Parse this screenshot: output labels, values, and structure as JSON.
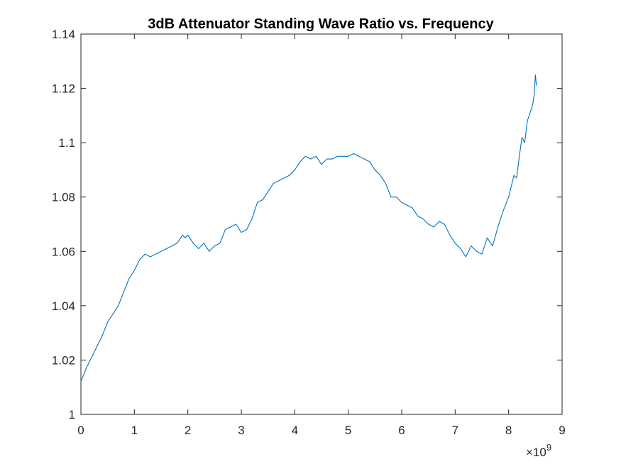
{
  "chart_data": {
    "type": "line",
    "title": "3dB Attenuator Standing Wave Ratio vs. Frequency",
    "xlabel": "",
    "ylabel": "",
    "xlim": [
      0,
      9
    ],
    "ylim": [
      1,
      1.14
    ],
    "x_exponent": {
      "base": "×10",
      "power": "9"
    },
    "x_ticks": [
      0,
      1,
      2,
      3,
      4,
      5,
      6,
      7,
      8,
      9
    ],
    "x_tick_labels": [
      "0",
      "1",
      "2",
      "3",
      "4",
      "5",
      "6",
      "7",
      "8",
      "9"
    ],
    "y_ticks": [
      1,
      1.02,
      1.04,
      1.06,
      1.08,
      1.1,
      1.12,
      1.14
    ],
    "y_tick_labels": [
      "1",
      "1.02",
      "1.04",
      "1.06",
      "1.08",
      "1.1",
      "1.12",
      "1.14"
    ],
    "grid": false,
    "colors": {
      "line": "#0072BD",
      "axes": "#262626"
    },
    "series": [
      {
        "x": [
          0,
          0.1,
          0.2,
          0.3,
          0.4,
          0.5,
          0.6,
          0.7,
          0.8,
          0.9,
          1.0,
          1.1,
          1.2,
          1.3,
          1.4,
          1.5,
          1.6,
          1.7,
          1.8,
          1.9,
          1.95,
          2.0,
          2.1,
          2.2,
          2.3,
          2.4,
          2.5,
          2.6,
          2.7,
          2.8,
          2.9,
          3.0,
          3.1,
          3.2,
          3.3,
          3.4,
          3.5,
          3.6,
          3.7,
          3.8,
          3.9,
          4.0,
          4.1,
          4.2,
          4.3,
          4.4,
          4.5,
          4.6,
          4.7,
          4.8,
          4.9,
          5.0,
          5.1,
          5.2,
          5.3,
          5.4,
          5.5,
          5.6,
          5.7,
          5.8,
          5.9,
          6.0,
          6.1,
          6.2,
          6.3,
          6.4,
          6.5,
          6.6,
          6.7,
          6.8,
          6.9,
          7.0,
          7.1,
          7.2,
          7.3,
          7.4,
          7.5,
          7.6,
          7.7,
          7.8,
          7.9,
          8.0,
          8.1,
          8.15,
          8.2,
          8.25,
          8.3,
          8.35,
          8.4,
          8.45,
          8.48,
          8.5,
          8.52
        ],
        "y": [
          1.012,
          1.017,
          1.021,
          1.025,
          1.029,
          1.034,
          1.037,
          1.04,
          1.045,
          1.05,
          1.053,
          1.057,
          1.059,
          1.058,
          1.059,
          1.06,
          1.061,
          1.062,
          1.063,
          1.066,
          1.065,
          1.066,
          1.063,
          1.061,
          1.063,
          1.06,
          1.062,
          1.063,
          1.068,
          1.069,
          1.07,
          1.067,
          1.068,
          1.072,
          1.078,
          1.079,
          1.082,
          1.085,
          1.086,
          1.087,
          1.088,
          1.09,
          1.093,
          1.095,
          1.094,
          1.095,
          1.092,
          1.094,
          1.094,
          1.095,
          1.095,
          1.095,
          1.096,
          1.095,
          1.094,
          1.093,
          1.09,
          1.088,
          1.085,
          1.08,
          1.08,
          1.078,
          1.077,
          1.076,
          1.073,
          1.072,
          1.07,
          1.069,
          1.071,
          1.07,
          1.066,
          1.063,
          1.061,
          1.058,
          1.062,
          1.06,
          1.059,
          1.065,
          1.062,
          1.069,
          1.075,
          1.08,
          1.088,
          1.087,
          1.095,
          1.102,
          1.1,
          1.108,
          1.111,
          1.114,
          1.118,
          1.125,
          1.121
        ]
      }
    ]
  }
}
